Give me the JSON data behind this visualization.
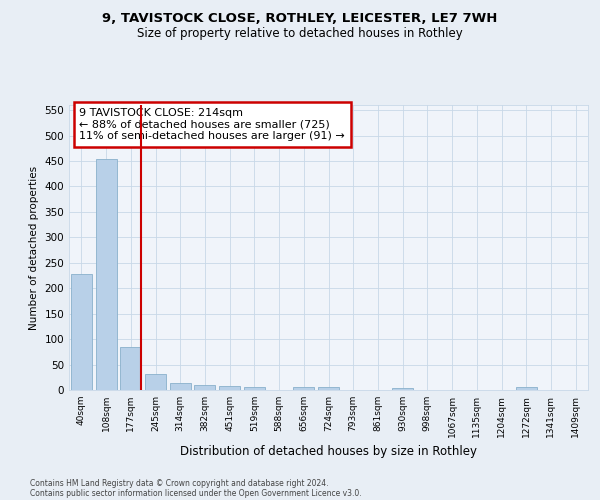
{
  "title_line1": "9, TAVISTOCK CLOSE, ROTHLEY, LEICESTER, LE7 7WH",
  "title_line2": "Size of property relative to detached houses in Rothley",
  "xlabel": "Distribution of detached houses by size in Rothley",
  "ylabel": "Number of detached properties",
  "categories": [
    "40sqm",
    "108sqm",
    "177sqm",
    "245sqm",
    "314sqm",
    "382sqm",
    "451sqm",
    "519sqm",
    "588sqm",
    "656sqm",
    "724sqm",
    "793sqm",
    "861sqm",
    "930sqm",
    "998sqm",
    "1067sqm",
    "1135sqm",
    "1204sqm",
    "1272sqm",
    "1341sqm",
    "1409sqm"
  ],
  "values": [
    228,
    453,
    85,
    32,
    13,
    10,
    7,
    5,
    0,
    5,
    5,
    0,
    0,
    4,
    0,
    0,
    0,
    0,
    5,
    0,
    0
  ],
  "bar_color": "#b8d0e8",
  "bar_edge_color": "#8ab0cc",
  "vline_color": "#cc0000",
  "annotation_text": "9 TAVISTOCK CLOSE: 214sqm\n← 88% of detached houses are smaller (725)\n11% of semi-detached houses are larger (91) →",
  "annotation_box_color": "#cc0000",
  "ylim": [
    0,
    560
  ],
  "yticks": [
    0,
    50,
    100,
    150,
    200,
    250,
    300,
    350,
    400,
    450,
    500,
    550
  ],
  "footer_line1": "Contains HM Land Registry data © Crown copyright and database right 2024.",
  "footer_line2": "Contains public sector information licensed under the Open Government Licence v3.0.",
  "background_color": "#e8eef5",
  "plot_background_color": "#f0f4fa",
  "grid_color": "#c8d8e8"
}
